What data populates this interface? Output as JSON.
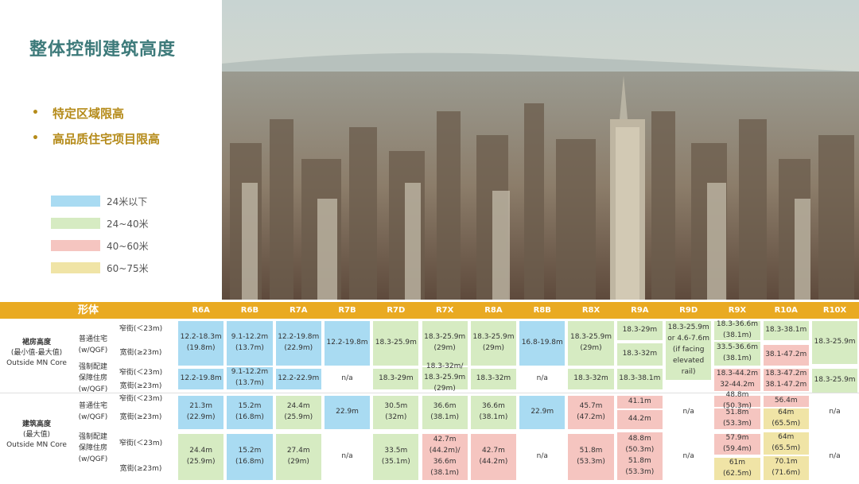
{
  "title": "整体控制建筑高度",
  "bullets": [
    "特定区域限高",
    "高品质住宅项目限高"
  ],
  "legend": [
    {
      "label": "24米以下",
      "color": "#a9dbf2"
    },
    {
      "label": "24~40米",
      "color": "#d6ebc2"
    },
    {
      "label": "40~60米",
      "color": "#f5c5c0"
    },
    {
      "label": "60~75米",
      "color": "#f0e4a6"
    }
  ],
  "table": {
    "form_header": "形体",
    "columns": [
      "R6A",
      "R6B",
      "R7A",
      "R7B",
      "R7D",
      "R7X",
      "R8A",
      "R8B",
      "R8X",
      "R9A",
      "R9D",
      "R9X",
      "R10A",
      "R10X"
    ],
    "section1": {
      "title": "裙房高度",
      "sub": "(最小值-最大值)",
      "core": "Outside MN Core"
    },
    "section2": {
      "title": "建筑高度",
      "sub": "(最大值)",
      "core": "Outside MN Core"
    },
    "general": "普通住宅\n(w/QGF)",
    "mandatory": "强制配建\n保障住房\n(w/QGF)",
    "narrow": "窄街(＜23m)",
    "wide": "宽街(≥23m)",
    "cells": {
      "a_r6a": "12.2-18.3m\n(19.8m)",
      "a_r6b": "9.1-12.2m\n(13.7m)",
      "a_r7a": "12.2-19.8m\n(22.9m)",
      "a_r7b": "12.2-19.8m",
      "a_r7d": "18.3-25.9m",
      "a_r7x": "18.3-25.9m\n(29m)",
      "a_r8a": "18.3-25.9m\n(29m)",
      "a_r8b": "16.8-19.8m",
      "a_r8x": "18.3-25.9m\n(29m)",
      "a_r9a_n": "18.3-29m",
      "a_r9a_w": "18.3-32m",
      "a_r9d": "18.3-25.9m\nor 4.6-7.6m\n(if facing\nelevated rail)",
      "a_r9x_n": "18.3-36.6m\n(38.1m)",
      "a_r9x_w": "33.5-36.6m\n(38.1m)",
      "a_r10a_n": "18.3-38.1m",
      "a_r10a_w": "38.1-47.2m",
      "a_r10x": "18.3-25.9m",
      "b_r6a": "12.2-19.8m",
      "b_r6b": "9.1-12.2m\n(13.7m)",
      "b_r7a": "12.2-22.9m",
      "b_r7b": "n/a",
      "b_r7d": "18.3-29m",
      "b_r7x": "18.3-32m/\n18.3-25.9m (29m)",
      "b_r8a": "18.3-32m",
      "b_r8b": "n/a",
      "b_r8x": "18.3-32m",
      "b_r9a": "18.3-38.1m",
      "b_r9x_n": "18.3-44.2m",
      "b_r9x_w": "32-44.2m",
      "b_r10a_n": "18.3-47.2m",
      "b_r10a_w": "38.1-47.2m",
      "b_r10x": "18.3-25.9m",
      "c_r6a": "21.3m\n(22.9m)",
      "c_r6b": "15.2m\n(16.8m)",
      "c_r7a": "24.4m\n(25.9m)",
      "c_r7b": "22.9m",
      "c_r7d": "30.5m\n(32m)",
      "c_r7x": "36.6m\n(38.1m)",
      "c_r8a": "36.6m\n(38.1m)",
      "c_r8b": "22.9m",
      "c_r8x": "45.7m\n(47.2m)",
      "c_r9a_n": "41.1m",
      "c_r9a_w": "44.2m",
      "c_r9d": "n/a",
      "c_r9x_n": "48.8m (50.3m)",
      "c_r9x_w": "51.8m (53.3m)",
      "c_r10a_n": "56.4m",
      "c_r10a_w": "64m\n(65.5m)",
      "c_r10x": "n/a",
      "d_r6a": "24.4m\n(25.9m)",
      "d_r6b": "15.2m\n(16.8m)",
      "d_r7a": "27.4m\n(29m)",
      "d_r7b": "n/a",
      "d_r7d": "33.5m\n(35.1m)",
      "d_r7x": "42.7m\n(44.2m)/\n36.6m\n(38.1m)",
      "d_r8a": "42.7m\n(44.2m)",
      "d_r8b": "n/a",
      "d_r8x": "51.8m\n(53.3m)",
      "d_r9a": "48.8m\n(50.3m)\n51.8m\n(53.3m)",
      "d_r9d": "n/a",
      "d_r9x_n": "57.9m (59.4m)",
      "d_r9x_w": "61m (62.5m)",
      "d_r10a_n": "64m\n(65.5m)",
      "d_r10a_w": "70.1m\n(71.6m)",
      "d_r10x": "n/a"
    }
  }
}
